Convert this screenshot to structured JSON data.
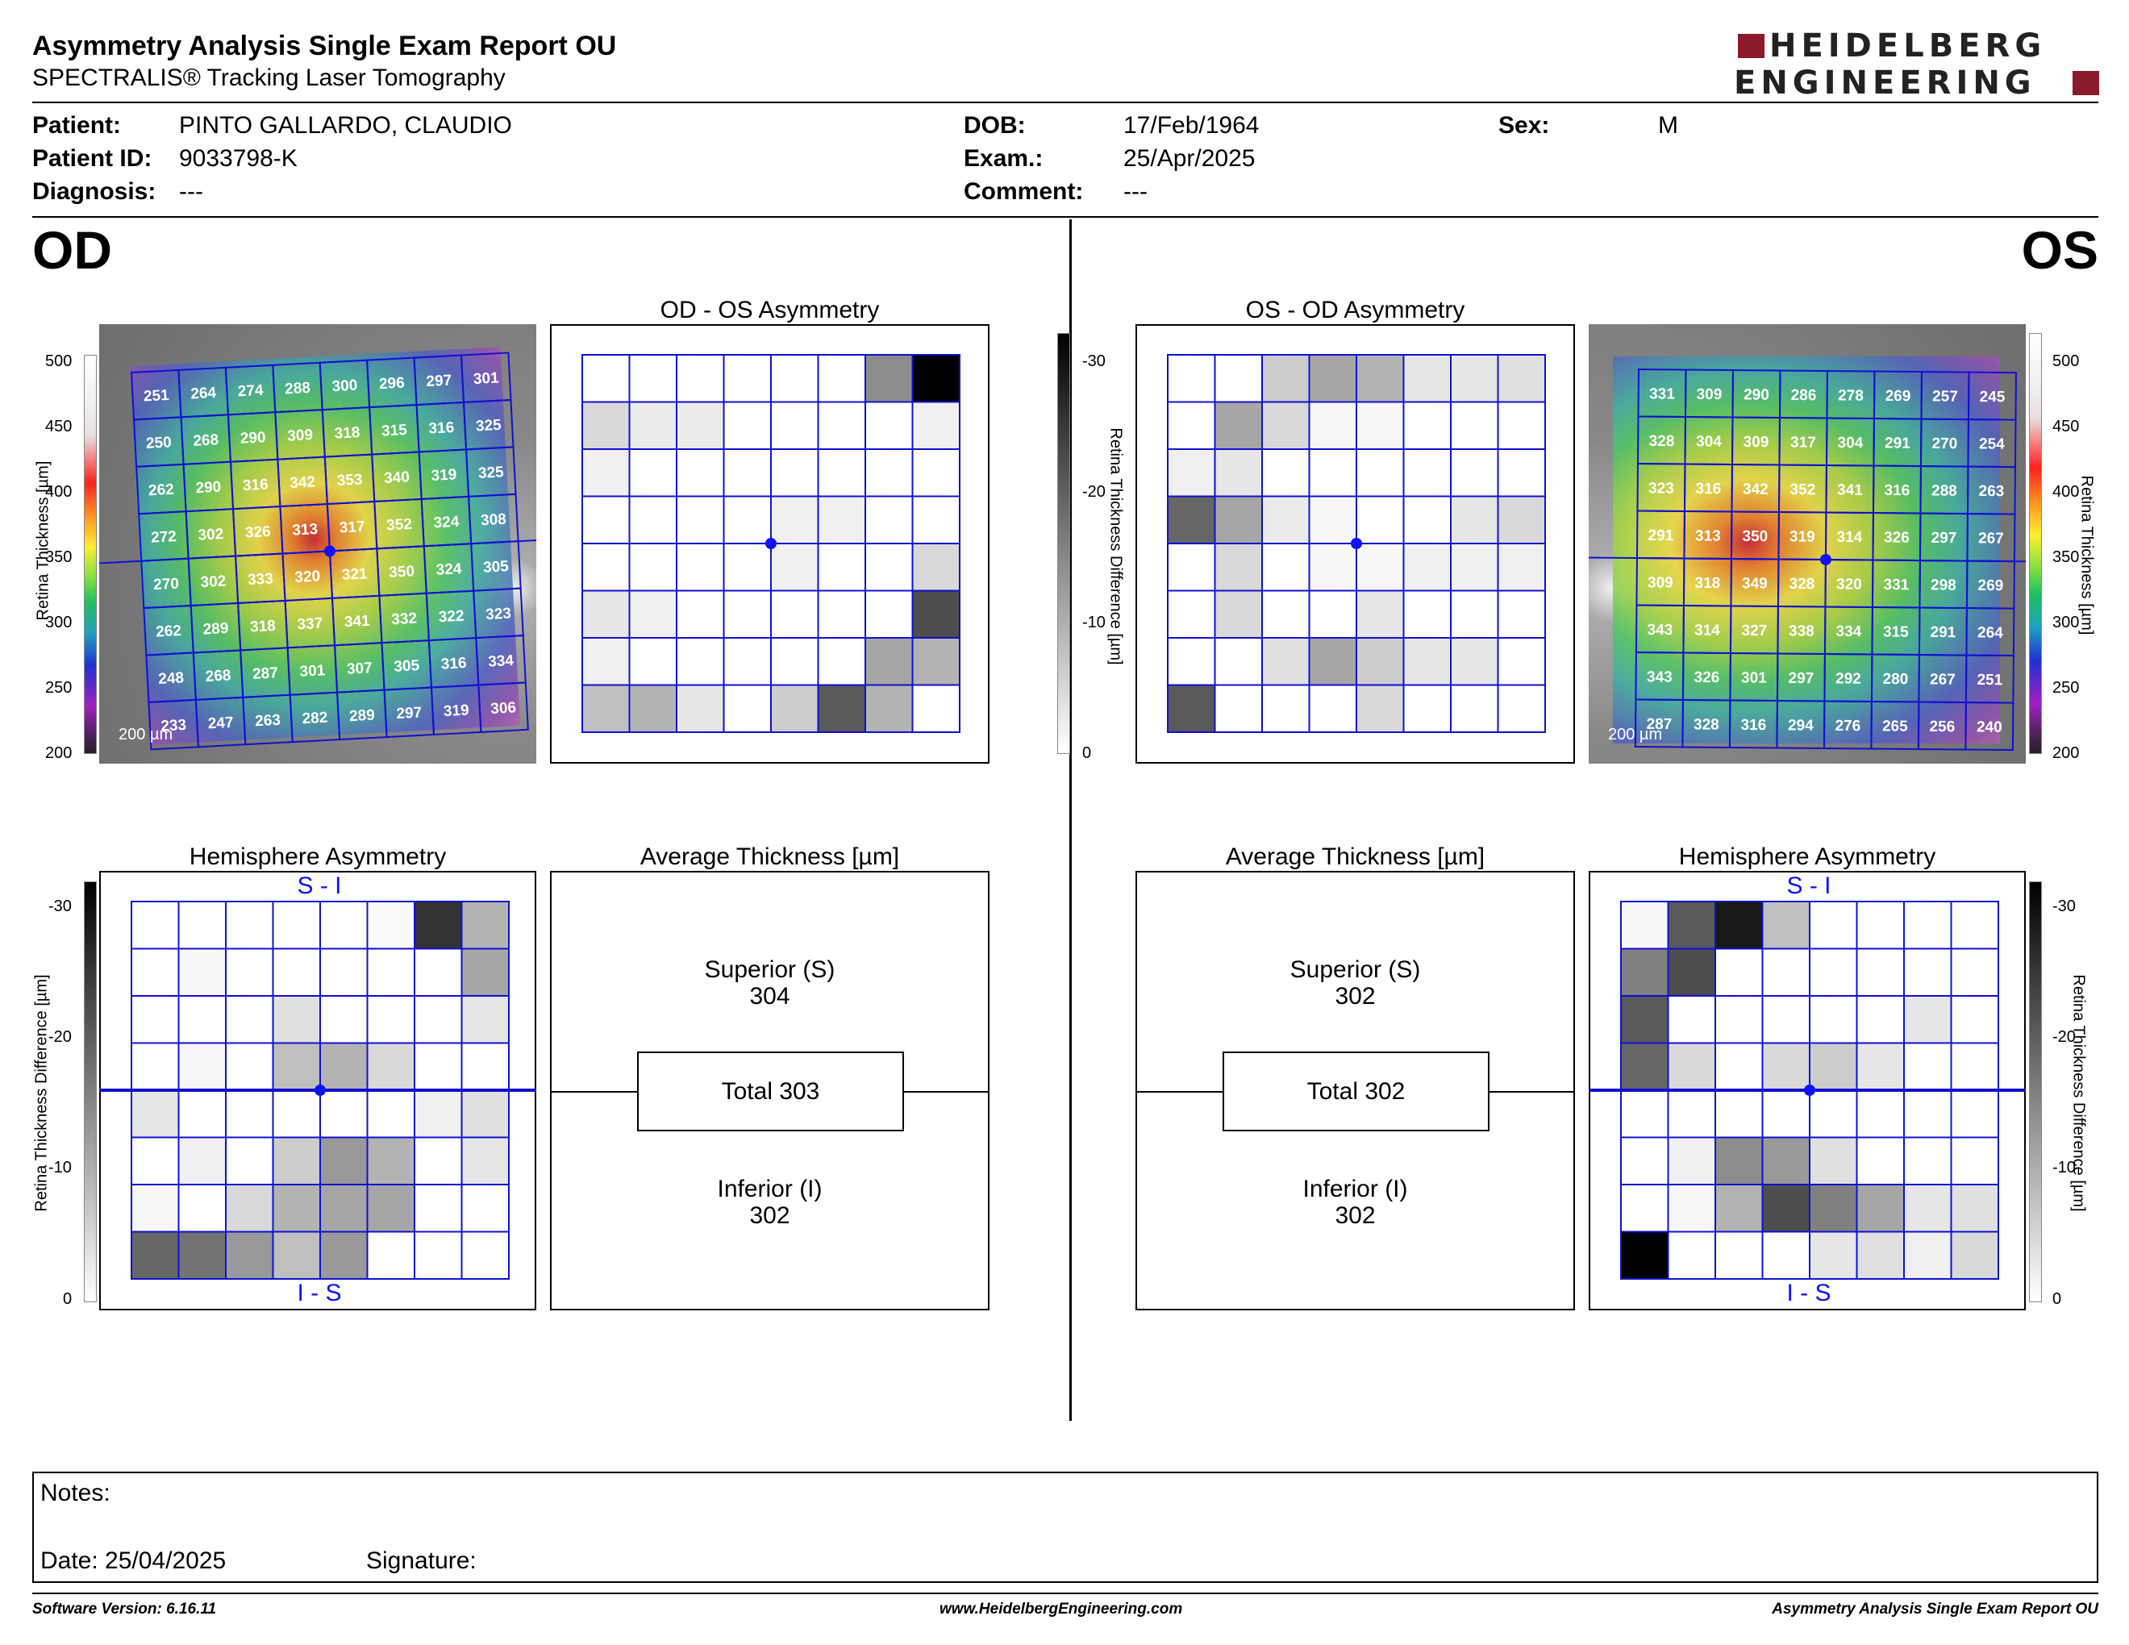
{
  "header": {
    "title": "Asymmetry Analysis Single Exam Report OU",
    "subtitle": "SPECTRALIS® Tracking Laser Tomography",
    "logo_line1": "HEIDELBERG",
    "logo_line2": "ENGINEERING",
    "brand_color": "#8b1a2b"
  },
  "patient": {
    "patient_label": "Patient:",
    "patient_value": "PINTO GALLARDO, CLAUDIO",
    "id_label": "Patient ID:",
    "id_value": "9033798-K",
    "diagnosis_label": "Diagnosis:",
    "diagnosis_value": "---",
    "dob_label": "DOB:",
    "dob_value": "17/Feb/1964",
    "exam_label": "Exam.:",
    "exam_value": "25/Apr/2025",
    "comment_label": "Comment:",
    "comment_value": "---",
    "sex_label": "Sex:",
    "sex_value": "M"
  },
  "od": {
    "eye": "OD",
    "asym_title": "OD - OS Asymmetry",
    "hemi_title": "Hemisphere Asymmetry",
    "avg_title": "Average Thickness [µm]",
    "superior_label": "Superior (S)",
    "superior_value": "304",
    "total_text": "Total 303",
    "inferior_label": "Inferior (I)",
    "inferior_value": "302",
    "si": "S - I",
    "is": "I - S",
    "scale": "200 µm",
    "thickness": [
      [
        251,
        264,
        274,
        288,
        300,
        296,
        297,
        301
      ],
      [
        250,
        268,
        290,
        309,
        318,
        315,
        316,
        325
      ],
      [
        262,
        290,
        316,
        342,
        353,
        340,
        319,
        325
      ],
      [
        272,
        302,
        326,
        313,
        317,
        352,
        324,
        308
      ],
      [
        270,
        302,
        333,
        320,
        321,
        350,
        324,
        305
      ],
      [
        262,
        289,
        318,
        337,
        341,
        332,
        322,
        323
      ],
      [
        248,
        268,
        287,
        301,
        307,
        305,
        316,
        334
      ],
      [
        233,
        247,
        263,
        282,
        289,
        297,
        319,
        306
      ]
    ],
    "asym_grid": [
      [
        0,
        0,
        0,
        0,
        0,
        0,
        0.45,
        1.0
      ],
      [
        0.15,
        0.08,
        0.08,
        0,
        0,
        0,
        0,
        0.06
      ],
      [
        0.06,
        0,
        0,
        0,
        0,
        0,
        0,
        0
      ],
      [
        0,
        0,
        0,
        0,
        0.06,
        0.06,
        0,
        0
      ],
      [
        0,
        0,
        0,
        0,
        0.06,
        0,
        0,
        0.15
      ],
      [
        0.1,
        0.06,
        0,
        0,
        0,
        0,
        0,
        0.7
      ],
      [
        0.06,
        0,
        0,
        0,
        0,
        0,
        0.35,
        0.3
      ],
      [
        0.25,
        0.3,
        0.1,
        0,
        0.2,
        0.65,
        0.3,
        0
      ]
    ],
    "hemi_grid": [
      [
        0,
        0,
        0,
        0,
        0,
        0.02,
        0.8,
        0.3
      ],
      [
        0,
        0.03,
        0,
        0,
        0,
        0,
        0,
        0.35
      ],
      [
        0,
        0,
        0,
        0.12,
        0,
        0,
        0,
        0.1
      ],
      [
        0,
        0.03,
        0,
        0.25,
        0.3,
        0.15,
        0,
        0
      ],
      [
        0.1,
        0,
        0,
        0,
        0,
        0,
        0.06,
        0.12
      ],
      [
        0,
        0.06,
        0,
        0.2,
        0.4,
        0.3,
        0,
        0.1
      ],
      [
        0.03,
        0,
        0.15,
        0.3,
        0.35,
        0.35,
        0,
        0
      ],
      [
        0.6,
        0.55,
        0.4,
        0.25,
        0.4,
        0,
        0,
        0
      ]
    ]
  },
  "os": {
    "eye": "OS",
    "asym_title": "OS - OD Asymmetry",
    "hemi_title": "Hemisphere Asymmetry",
    "avg_title": "Average Thickness [µm]",
    "superior_label": "Superior (S)",
    "superior_value": "302",
    "total_text": "Total 302",
    "inferior_label": "Inferior (I)",
    "inferior_value": "302",
    "si": "S - I",
    "is": "I - S",
    "scale": "200 µm",
    "thickness": [
      [
        331,
        309,
        290,
        286,
        278,
        269,
        257,
        245
      ],
      [
        328,
        304,
        309,
        317,
        304,
        291,
        270,
        254
      ],
      [
        323,
        316,
        342,
        352,
        341,
        316,
        288,
        263
      ],
      [
        291,
        313,
        350,
        319,
        314,
        326,
        297,
        267
      ],
      [
        309,
        318,
        349,
        328,
        320,
        331,
        298,
        269
      ],
      [
        343,
        314,
        327,
        338,
        334,
        315,
        291,
        264
      ],
      [
        343,
        326,
        301,
        297,
        292,
        280,
        267,
        251
      ],
      [
        287,
        328,
        316,
        294,
        276,
        265,
        256,
        240
      ]
    ],
    "asym_grid": [
      [
        0,
        0,
        0.2,
        0.35,
        0.3,
        0.1,
        0.1,
        0.12
      ],
      [
        0,
        0.35,
        0.15,
        0.03,
        0.03,
        0,
        0,
        0
      ],
      [
        0.06,
        0.1,
        0,
        0,
        0,
        0,
        0,
        0
      ],
      [
        0.6,
        0.35,
        0.08,
        0.03,
        0,
        0,
        0.1,
        0.15
      ],
      [
        0,
        0.15,
        0,
        0.03,
        0.03,
        0.06,
        0.06,
        0.06
      ],
      [
        0,
        0.15,
        0,
        0,
        0.1,
        0,
        0,
        0
      ],
      [
        0,
        0,
        0.12,
        0.35,
        0.2,
        0.1,
        0.1,
        0
      ],
      [
        0.65,
        0,
        0,
        0,
        0.15,
        0,
        0,
        0
      ]
    ],
    "hemi_grid": [
      [
        0.03,
        0.65,
        0.9,
        0.25,
        0,
        0,
        0,
        0
      ],
      [
        0.5,
        0.7,
        0,
        0,
        0,
        0,
        0,
        0
      ],
      [
        0.65,
        0,
        0,
        0,
        0,
        0,
        0.1,
        0
      ],
      [
        0.6,
        0.15,
        0,
        0.15,
        0.2,
        0.1,
        0,
        0
      ],
      [
        0,
        0,
        0,
        0,
        0,
        0,
        0,
        0
      ],
      [
        0,
        0.06,
        0.45,
        0.4,
        0.12,
        0,
        0,
        0
      ],
      [
        0,
        0.03,
        0.3,
        0.7,
        0.5,
        0.35,
        0.1,
        0.12
      ],
      [
        1.0,
        0,
        0,
        0,
        0.1,
        0.12,
        0.06,
        0.15
      ]
    ]
  },
  "colorbar": {
    "thickness_ticks": [
      "500",
      "450",
      "400",
      "350",
      "300",
      "250",
      "200"
    ],
    "thickness_label": "Retina  Thickness [µm]",
    "diff_ticks": [
      "-30",
      "-20",
      "-10",
      "0"
    ],
    "diff_label": "Retina Thickness Difference [µm]"
  },
  "notes": {
    "notes_label": "Notes:",
    "date_text": "Date: 25/04/2025",
    "signature_label": "Signature:"
  },
  "footer": {
    "software": "Software Version: 6.16.11",
    "website": "www.HeidelbergEngineering.com",
    "report_name": "Asymmetry Analysis Single Exam Report OU"
  }
}
